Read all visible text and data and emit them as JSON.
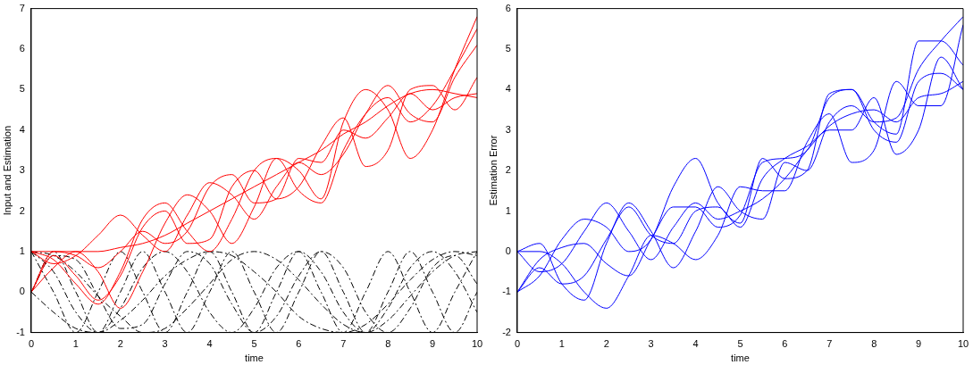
{
  "chart_data": [
    {
      "type": "line",
      "xlabel": "time",
      "ylabel": "Input and Estimation",
      "x": [
        0,
        0.5,
        1,
        1.5,
        2,
        2.5,
        3,
        3.5,
        4,
        4.5,
        5,
        5.5,
        6,
        6.5,
        7,
        7.5,
        8,
        8.5,
        9,
        9.5,
        10
      ],
      "xlim": [
        0,
        10
      ],
      "xticks": [
        0,
        1,
        2,
        3,
        4,
        5,
        6,
        7,
        8,
        9,
        10
      ],
      "ylim": [
        -1,
        7
      ],
      "yticks": [
        -1,
        0,
        1,
        2,
        3,
        4,
        5,
        6,
        7
      ],
      "grid": false,
      "legend": false,
      "series": [
        {
          "color": "#ff0000",
          "values": [
            1,
            0.8,
            0.2,
            -0.3,
            0.5,
            1.8,
            2.2,
            1.5,
            1.0,
            1.8,
            3.0,
            3.3,
            2.5,
            2.2,
            3.5,
            4.4,
            4.8,
            4.2,
            4.6,
            5.5,
            6.5
          ]
        },
        {
          "color": "#ff0000",
          "values": [
            0,
            0.6,
            1.0,
            0.5,
            -0.4,
            0.5,
            1.7,
            2.4,
            2.0,
            1.2,
            2.1,
            3.3,
            3.0,
            2.3,
            4.2,
            5.0,
            4.5,
            3.3,
            4.0,
            5.5,
            6.8
          ]
        },
        {
          "color": "#ff0000",
          "values": [
            0,
            1.0,
            0.9,
            0.6,
            1.0,
            1.5,
            1.2,
            1.5,
            2.6,
            2.9,
            2.2,
            2.3,
            3.3,
            3.2,
            4.0,
            3.8,
            4.3,
            4.9,
            4.5,
            4.8,
            4.9
          ]
        },
        {
          "color": "#ff0000",
          "values": [
            1,
            1.0,
            1.0,
            1.0,
            1.1,
            1.2,
            1.4,
            1.7,
            2.0,
            2.3,
            2.6,
            2.9,
            3.2,
            3.5,
            3.9,
            4.2,
            4.6,
            4.9,
            5.0,
            4.9,
            4.8
          ]
        },
        {
          "color": "#ff0000",
          "values": [
            0,
            0.9,
            0.4,
            -0.2,
            0.4,
            1.6,
            2.0,
            1.2,
            1.3,
            2.6,
            3.0,
            2.3,
            2.6,
            3.6,
            4.3,
            3.1,
            3.5,
            5.0,
            5.1,
            4.5,
            5.3
          ]
        },
        {
          "color": "#ff0000",
          "values": [
            1,
            0.7,
            0.9,
            1.4,
            1.9,
            1.4,
            1.0,
            1.9,
            2.7,
            2.4,
            1.8,
            2.6,
            3.2,
            2.9,
            3.4,
            4.4,
            5.1,
            4.4,
            4.2,
            5.3,
            6.1
          ]
        },
        {
          "color": "#000000",
          "line_style": "dashed",
          "values": [
            1,
            0.5,
            -0.5,
            -1,
            -0.4,
            0.6,
            1,
            0.5,
            -0.5,
            -1,
            -0.4,
            0.6,
            1,
            0.5,
            -0.5,
            -1,
            -0.4,
            0.6,
            1,
            0.5,
            -0.5
          ]
        },
        {
          "color": "#000000",
          "line_style": "dashed",
          "values": [
            1,
            0,
            -1,
            0,
            1,
            0,
            -1,
            0,
            1,
            0,
            -1,
            0,
            1,
            0,
            -1,
            0,
            1,
            0,
            -1,
            0,
            1
          ]
        },
        {
          "color": "#000000",
          "line_style": "dashed",
          "values": [
            0,
            0.9,
            0.8,
            -0.1,
            -0.9,
            -0.8,
            0.2,
            1,
            0.7,
            -0.3,
            -1,
            -0.6,
            0.4,
            1,
            0.6,
            -0.5,
            -1,
            -0.4,
            0.6,
            0.9,
            0.2
          ]
        },
        {
          "color": "#000000",
          "line_style": "dashed",
          "values": [
            0,
            -0.5,
            -0.9,
            -1,
            -0.7,
            -0.2,
            0.4,
            0.8,
            1,
            0.9,
            0.5,
            0,
            -0.6,
            -0.9,
            -1,
            -0.8,
            -0.3,
            0.3,
            0.8,
            1,
            0.9
          ]
        },
        {
          "color": "#000000",
          "line_style": "dashed",
          "values": [
            1,
            0.9,
            0.5,
            -0.1,
            -0.6,
            -1,
            -0.9,
            -0.4,
            0.2,
            0.8,
            1,
            0.8,
            0.3,
            -0.3,
            -0.8,
            -1,
            -0.7,
            -0.1,
            0.5,
            0.9,
            1
          ]
        },
        {
          "color": "#000000",
          "line_style": "dashed",
          "values": [
            0,
            1,
            0,
            -1,
            0,
            1,
            0,
            -1,
            0,
            1,
            0,
            -1,
            0,
            1,
            0,
            -1,
            0,
            1,
            0,
            -1,
            0
          ]
        }
      ]
    },
    {
      "type": "line",
      "xlabel": "time",
      "ylabel": "Estimation Error",
      "x": [
        0,
        0.5,
        1,
        1.5,
        2,
        2.5,
        3,
        3.5,
        4,
        4.5,
        5,
        5.5,
        6,
        6.5,
        7,
        7.5,
        8,
        8.5,
        9,
        9.5,
        10
      ],
      "xlim": [
        0,
        10
      ],
      "xticks": [
        0,
        1,
        2,
        3,
        4,
        5,
        6,
        7,
        8,
        9,
        10
      ],
      "ylim": [
        -2,
        6
      ],
      "yticks": [
        -2,
        -1,
        0,
        1,
        2,
        3,
        4,
        5,
        6
      ],
      "grid": false,
      "legend": false,
      "series": [
        {
          "color": "#0000ff",
          "values": [
            0,
            0.2,
            -0.8,
            -1.2,
            0.2,
            1.2,
            0.5,
            -0.4,
            0.5,
            1.6,
            1.0,
            0.8,
            2.2,
            2.0,
            3.2,
            3.6,
            3.2,
            3.3,
            4.5,
            5.2,
            5.8
          ]
        },
        {
          "color": "#0000ff",
          "values": [
            -1,
            -0.2,
            0.1,
            0.2,
            -0.3,
            -0.6,
            0.3,
            1.1,
            1.1,
            0.6,
            0.9,
            2.2,
            2.3,
            2.5,
            3.8,
            4.0,
            3.0,
            2.7,
            4.2,
            4.4,
            4.0
          ]
        },
        {
          "color": "#0000ff",
          "values": [
            0,
            0.0,
            -0.3,
            -1.0,
            -1.4,
            -0.6,
            0.4,
            0.2,
            -0.2,
            0.4,
            1.6,
            1.5,
            1.5,
            2.7,
            3.4,
            2.2,
            2.5,
            4.2,
            3.6,
            3.6,
            5.6
          ]
        },
        {
          "color": "#0000ff",
          "values": [
            -1,
            -0.6,
            0.3,
            0.8,
            0.6,
            0.0,
            0.3,
            1.6,
            2.3,
            1.2,
            0.7,
            2.3,
            1.8,
            2.0,
            3.9,
            4.0,
            3.2,
            2.9,
            5.2,
            5.2,
            4.6
          ]
        },
        {
          "color": "#0000ff",
          "values": [
            0,
            -0.5,
            -0.3,
            0.5,
            1.2,
            0.5,
            -0.2,
            0.6,
            1.2,
            0.8,
            1.0,
            1.3,
            1.8,
            2.5,
            3.1,
            3.4,
            3.5,
            3.2,
            3.8,
            3.9,
            4.2
          ]
        },
        {
          "color": "#0000ff",
          "values": [
            -1,
            -0.4,
            -0.8,
            -0.6,
            0.3,
            1.1,
            0.4,
            0.2,
            1.0,
            1.1,
            0.6,
            1.8,
            2.3,
            2.6,
            3.0,
            3.0,
            3.8,
            2.4,
            3.0,
            4.8,
            4.0
          ]
        }
      ]
    }
  ]
}
